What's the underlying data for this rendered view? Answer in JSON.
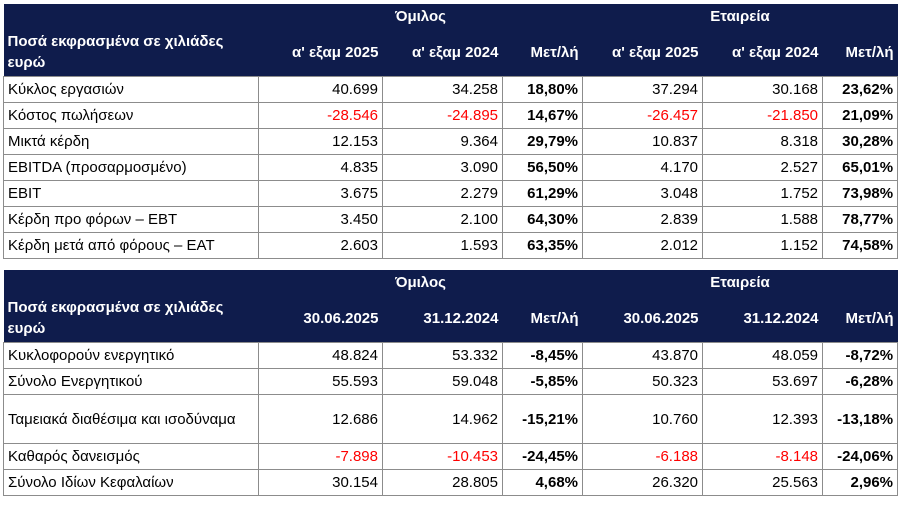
{
  "table1": {
    "group_left": "Όμιλος",
    "group_right": "Εταιρεία",
    "label_header": "Ποσά εκφρασμένα σε χιλιάδες ευρώ",
    "columns": [
      "α' εξαμ 2025",
      "α' εξαμ 2024",
      "Μετ/λή",
      "α' εξαμ 2025",
      "α' εξαμ 2024",
      "Μετ/λή"
    ],
    "rows": [
      {
        "label": "Κύκλος εργασιών",
        "cells": [
          "40.699",
          "34.258",
          "18,80%",
          "37.294",
          "30.168",
          "23,62%"
        ]
      },
      {
        "label": "Κόστος πωλήσεων",
        "cells": [
          "-28.546",
          "-24.895",
          "14,67%",
          "-26.457",
          "-21.850",
          "21,09%"
        ]
      },
      {
        "label": "Μικτά κέρδη",
        "cells": [
          "12.153",
          "9.364",
          "29,79%",
          "10.837",
          "8.318",
          "30,28%"
        ]
      },
      {
        "label": "EBITDA (προσαρμοσμένο)",
        "cells": [
          "4.835",
          "3.090",
          "56,50%",
          "4.170",
          "2.527",
          "65,01%"
        ]
      },
      {
        "label": "EBIT",
        "cells": [
          "3.675",
          "2.279",
          "61,29%",
          "3.048",
          "1.752",
          "73,98%"
        ]
      },
      {
        "label": "Κέρδη προ φόρων – EBT",
        "cells": [
          "3.450",
          "2.100",
          "64,30%",
          "2.839",
          "1.588",
          "78,77%"
        ]
      },
      {
        "label": "Κέρδη μετά από φόρους – EAT",
        "cells": [
          "2.603",
          "1.593",
          "63,35%",
          "2.012",
          "1.152",
          "74,58%"
        ]
      }
    ]
  },
  "table2": {
    "group_left": "Όμιλος",
    "group_right": "Εταιρεία",
    "label_header": "Ποσά εκφρασμένα σε χιλιάδες ευρώ",
    "columns": [
      "30.06.2025",
      "31.12.2024",
      "Μετ/λή",
      "30.06.2025",
      "31.12.2024",
      "Μετ/λή"
    ],
    "rows": [
      {
        "label": "Κυκλοφορούν ενεργητικό",
        "cells": [
          "48.824",
          "53.332",
          "-8,45%",
          "43.870",
          "48.059",
          "-8,72%"
        ]
      },
      {
        "label": "Σύνολο Ενεργητικού",
        "cells": [
          "55.593",
          "59.048",
          "-5,85%",
          "50.323",
          "53.697",
          "-6,28%"
        ]
      },
      {
        "label": "Ταμειακά διαθέσιμα και ισοδύναμα",
        "cells": [
          "12.686",
          "14.962",
          "-15,21%",
          "10.760",
          "12.393",
          "-13,18%"
        ]
      },
      {
        "label": "Καθαρός δανεισμός",
        "cells": [
          "-7.898",
          "-10.453",
          "-24,45%",
          "-6.188",
          "-8.148",
          "-24,06%"
        ]
      },
      {
        "label": "Σύνολο Ιδίων Κεφαλαίων",
        "cells": [
          "30.154",
          "28.805",
          "4,68%",
          "26.320",
          "25.563",
          "2,96%"
        ]
      }
    ]
  },
  "colors": {
    "header_bg": "#0f1c4c",
    "header_text": "#ffffff",
    "negative": "#ff0000"
  }
}
